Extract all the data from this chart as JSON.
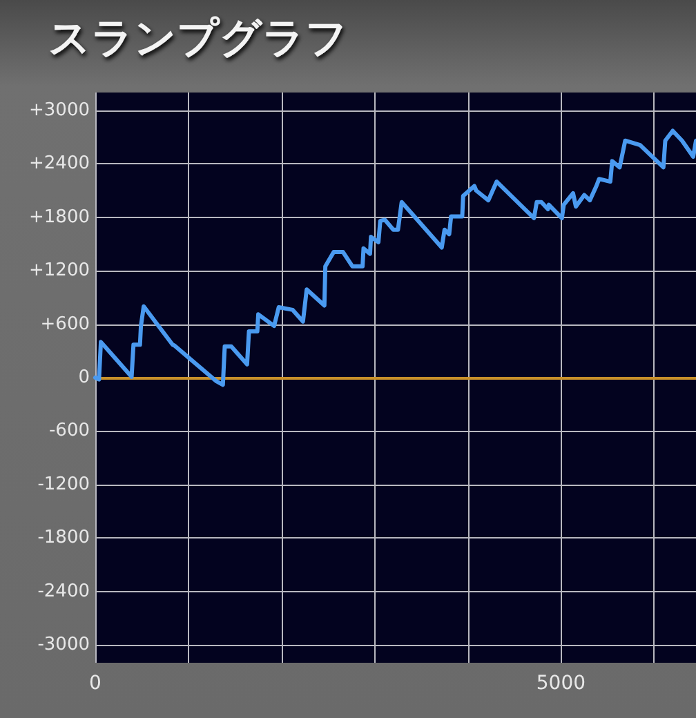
{
  "chart_data": {
    "type": "line",
    "title": "スランプグラフ",
    "xlim": [
      0,
      6450
    ],
    "xticks": [
      0,
      {
        "value": 1000,
        "label": null
      },
      {
        "value": 2000,
        "label": null
      },
      {
        "value": 3000,
        "label": null
      },
      {
        "value": 4000,
        "label": null
      },
      5000,
      {
        "value": 6000,
        "label": null
      }
    ],
    "ylim": [
      -3200,
      3200
    ],
    "yticks": [
      {
        "value": -3000,
        "label": "-3000"
      },
      {
        "value": -2400,
        "label": "-2400"
      },
      {
        "value": -1800,
        "label": "-1800"
      },
      {
        "value": -1200,
        "label": "-1200"
      },
      {
        "value": -600,
        "label": "-600"
      },
      0,
      {
        "value": 600,
        "label": "+600"
      },
      {
        "value": 1200,
        "label": "+1200"
      },
      {
        "value": 1800,
        "label": "+1800"
      },
      {
        "value": 2400,
        "label": "+2400"
      },
      {
        "value": 3000,
        "label": "+3000"
      }
    ],
    "grid": true,
    "marker": "none",
    "line_style": "solid",
    "ref_lines": [
      {
        "axis": "y",
        "value": 0,
        "color": "#c8902a"
      }
    ],
    "series": [
      {
        "color": "#4a9af0",
        "x": [
          0,
          40,
          60,
          390,
          410,
          480,
          490,
          520,
          830,
          850,
          1300,
          1370,
          1390,
          1460,
          1630,
          1650,
          1740,
          1750,
          1920,
          1970,
          2120,
          2230,
          2270,
          2460,
          2470,
          2560,
          2660,
          2760,
          2870,
          2880,
          2950,
          2960,
          3040,
          3060,
          3110,
          3200,
          3250,
          3290,
          3720,
          3750,
          3800,
          3820,
          3940,
          3950,
          4070,
          4090,
          4220,
          4310,
          4710,
          4740,
          4790,
          4860,
          4870,
          5010,
          5030,
          5130,
          5160,
          5250,
          5310,
          5380,
          5410,
          5530,
          5550,
          5630,
          5690,
          5850,
          6100,
          6120,
          6200,
          6300,
          6420,
          6450
        ],
        "values": [
          0,
          -20,
          400,
          10,
          370,
          370,
          580,
          800,
          370,
          360,
          -40,
          -80,
          350,
          350,
          150,
          520,
          520,
          710,
          580,
          790,
          760,
          630,
          990,
          810,
          1250,
          1410,
          1410,
          1250,
          1250,
          1450,
          1390,
          1580,
          1520,
          1760,
          1770,
          1660,
          1660,
          1970,
          1460,
          1660,
          1610,
          1810,
          1810,
          2040,
          2150,
          2100,
          1990,
          2200,
          1790,
          1970,
          1970,
          1890,
          1940,
          1790,
          1940,
          2070,
          1920,
          2050,
          1990,
          2150,
          2230,
          2200,
          2430,
          2360,
          2660,
          2610,
          2360,
          2660,
          2770,
          2660,
          2480,
          2660
        ]
      }
    ]
  }
}
